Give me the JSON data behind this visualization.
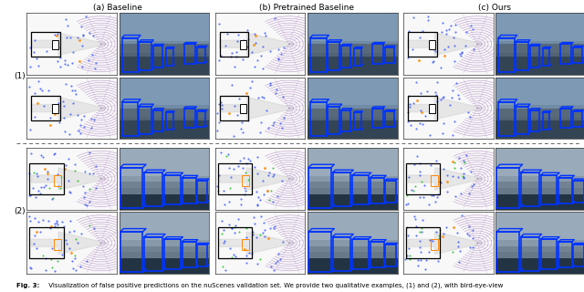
{
  "col_titles": [
    "(a) Baseline",
    "(b) Pretrained Baseline",
    "(c) Ours"
  ],
  "row_labels": [
    "(1)",
    "(2)"
  ],
  "caption_bold": "Fig. 3:",
  "caption_normal": " Visualization of false positive predictions on the nuScenes validation set. We provide two qualitative examples, (1) and (2), with bird-eye-view",
  "background_color": "#ffffff",
  "text_color": "#000000",
  "fig_width": 6.4,
  "fig_height": 3.2,
  "dpi": 100,
  "title_fontsize": 6.5,
  "label_fontsize": 6.5,
  "caption_fontsize": 5.0
}
